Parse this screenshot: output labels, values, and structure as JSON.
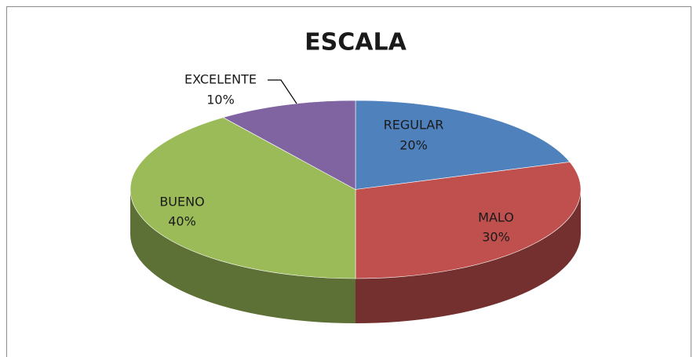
{
  "chart_data": {
    "type": "pie",
    "title": "ESCALA",
    "categories": [
      "REGULAR",
      "MALO",
      "BUENO",
      "EXCELENTE"
    ],
    "values": [
      20,
      30,
      40,
      10
    ],
    "value_labels": [
      "20%",
      "30%",
      "40%",
      "10%"
    ],
    "colors": [
      "#4f81bd",
      "#c0504d",
      "#9bbb59",
      "#8064a2"
    ]
  }
}
